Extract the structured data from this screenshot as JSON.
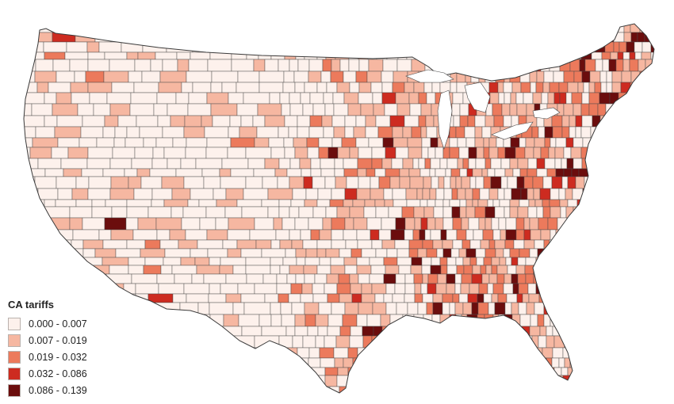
{
  "map": {
    "region": "contiguous-united-states",
    "unit": "county",
    "border_color": "#4a4a4a",
    "classes": [
      {
        "label": "0.000 - 0.007",
        "color": "#fdf1ec"
      },
      {
        "label": "0.007 - 0.019",
        "color": "#f6b7a1"
      },
      {
        "label": "0.019 - 0.032",
        "color": "#ec7a5c"
      },
      {
        "label": "0.032 - 0.086",
        "color": "#cd2b20"
      },
      {
        "label": "0.086 - 0.139",
        "color": "#6b0d0d"
      }
    ]
  },
  "legend": {
    "title": "CA tariffs",
    "items": [
      {
        "label": "0.000 - 0.007",
        "color": "#fdf1ec"
      },
      {
        "label": "0.007 - 0.019",
        "color": "#f6b7a1"
      },
      {
        "label": "0.019 - 0.032",
        "color": "#ec7a5c"
      },
      {
        "label": "0.032 - 0.086",
        "color": "#cd2b20"
      },
      {
        "label": "0.086 - 0.139",
        "color": "#6b0d0d"
      }
    ]
  }
}
